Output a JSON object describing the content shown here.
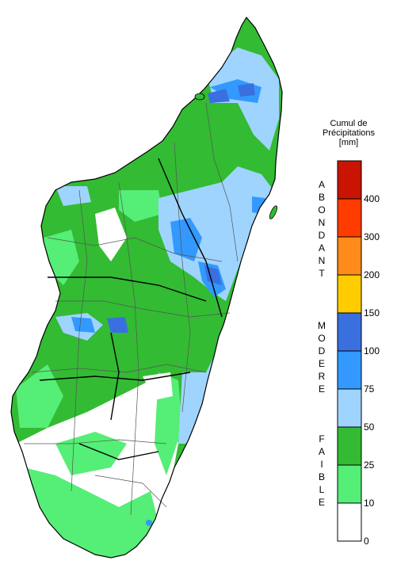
{
  "legend": {
    "title_lines": [
      "Cumul de",
      "Précipitations",
      "[mm]"
    ],
    "classes": [
      {
        "label": "ABONDANT",
        "color": "#c81400"
      },
      {
        "label": "MODERE",
        "color": "#3a6fe0"
      },
      {
        "label": "FAIBLE",
        "color": "#33bb33"
      }
    ],
    "bins": [
      {
        "max": "10",
        "color": "#ffffff"
      },
      {
        "max": "25",
        "color": "#55ee77"
      },
      {
        "max": "50",
        "color": "#33bb33"
      },
      {
        "max": "75",
        "color": "#9fd4ff"
      },
      {
        "max": "100",
        "color": "#3399ff"
      },
      {
        "max": "150",
        "color": "#3a6fe0"
      },
      {
        "max": "200",
        "color": "#ffcc00"
      },
      {
        "max": "300",
        "color": "#ff8c1a"
      },
      {
        "max": "400",
        "color": "#ff3c00"
      },
      {
        "max": "",
        "color": "#c81400"
      }
    ],
    "tick_labels": [
      "0",
      "10",
      "25",
      "50",
      "75",
      "100",
      "150",
      "200",
      "300",
      "400"
    ]
  },
  "map": {
    "fill_colors": {
      "land_none": "#ffffff",
      "low": "#55ee77",
      "mid": "#33bb33",
      "light_blue": "#9fd4ff",
      "blue": "#3399ff",
      "dark_blue": "#3a6fe0",
      "border": "#000000"
    }
  }
}
